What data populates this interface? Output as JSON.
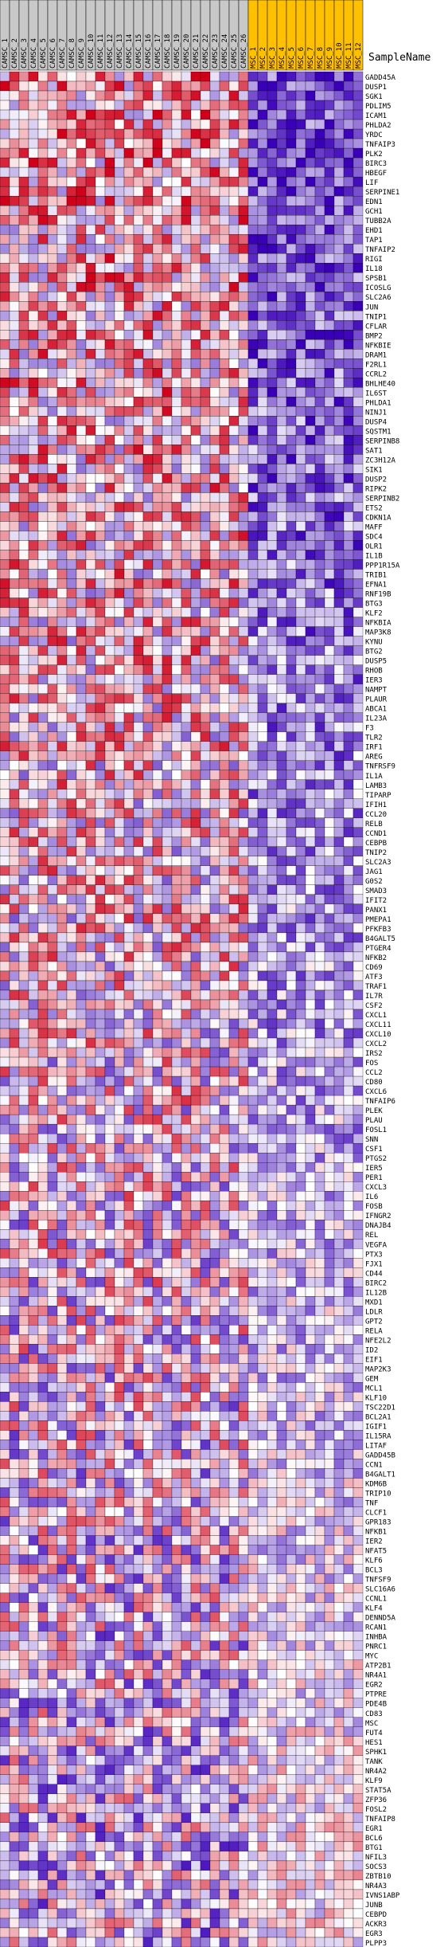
{
  "chart_data": {
    "type": "heatmap",
    "title": "SampleName",
    "columns": [
      "CAMSC_1",
      "CAMSC_2",
      "CAMSC_3",
      "CAMSC_4",
      "CAMSC_5",
      "CAMSC_6",
      "CAMSC_7",
      "CAMSC_8",
      "CAMSC_9",
      "CAMSC_10",
      "CAMSC_11",
      "CAMSC_12",
      "CAMSC_13",
      "CAMSC_14",
      "CAMSC_15",
      "CAMSC_16",
      "CAMSC_17",
      "CAMSC_18",
      "CAMSC_19",
      "CAMSC_20",
      "CAMSC_21",
      "CAMSC_22",
      "CAMSC_23",
      "CAMSC_24",
      "CAMSC_25",
      "CAMSC_26",
      "MSC_1",
      "MSC_2",
      "MSC_3",
      "MSC_4",
      "MSC_5",
      "MSC_6",
      "MSC_7",
      "MSC_8",
      "MSC_9",
      "MSC_10",
      "MSC_11",
      "MSC_12"
    ],
    "column_groups": [
      {
        "name": "CAMSC",
        "count": 26,
        "color": "#c8c8c8"
      },
      {
        "name": "MSC",
        "count": 12,
        "color": "#ffc000"
      }
    ],
    "rows": [
      "GADD45A",
      "DUSP1",
      "SGK1",
      "PDLIM5",
      "ICAM1",
      "PHLDA2",
      "YRDC",
      "TNFAIP3",
      "PLK2",
      "BIRC3",
      "HBEGF",
      "LIF",
      "SERPINE1",
      "EDN1",
      "GCH1",
      "TUBB2A",
      "EHD1",
      "TAP1",
      "TNFAIP2",
      "RIGI",
      "IL18",
      "SPSB1",
      "ICOSLG",
      "SLC2A6",
      "JUN",
      "TNIP1",
      "CFLAR",
      "BMP2",
      "NFKBIE",
      "DRAM1",
      "F2RL1",
      "CCRL2",
      "BHLHE40",
      "IL6ST",
      "PHLDA1",
      "NINJ1",
      "DUSP4",
      "SQSTM1",
      "SERPINB8",
      "SAT1",
      "ZC3H12A",
      "SIK1",
      "DUSP2",
      "RIPK2",
      "SERPINB2",
      "ETS2",
      "CDKN1A",
      "MAFF",
      "SDC4",
      "OLR1",
      "IL1B",
      "PPP1R15A",
      "TRIB1",
      "EFNA1",
      "RNF19B",
      "BTG3",
      "KLF2",
      "NFKBIA",
      "MAP3K8",
      "KYNU",
      "BTG2",
      "DUSP5",
      "RHOB",
      "IER3",
      "NAMPT",
      "PLAUR",
      "ABCA1",
      "IL23A",
      "F3",
      "TLR2",
      "IRF1",
      "AREG",
      "TNFRSF9",
      "IL1A",
      "LAMB3",
      "TIPARP",
      "IFIH1",
      "CCL20",
      "RELB",
      "CCND1",
      "CEBPB",
      "TNIP2",
      "SLC2A3",
      "JAG1",
      "G0S2",
      "SMAD3",
      "IFIT2",
      "PANX1",
      "PMEPA1",
      "PFKFB3",
      "B4GALT5",
      "PTGER4",
      "NFKB2",
      "CD69",
      "ATF3",
      "TRAF1",
      "IL7R",
      "CSF2",
      "CXCL1",
      "CXCL11",
      "CXCL10",
      "CXCL2",
      "IRS2",
      "FOS",
      "CCL2",
      "CD80",
      "CXCL6",
      "TNFAIP6",
      "PLEK",
      "PLAU",
      "FOSL1",
      "SNN",
      "CSF1",
      "PTGS2",
      "IER5",
      "PER1",
      "CXCL3",
      "IL6",
      "FOSB",
      "IFNGR2",
      "DNAJB4",
      "REL",
      "VEGFA",
      "PTX3",
      "FJX1",
      "CD44",
      "BIRC2",
      "IL12B",
      "MXD1",
      "LDLR",
      "GPT2",
      "RELA",
      "NFE2L2",
      "ID2",
      "EIF1",
      "MAP2K3",
      "GEM",
      "MCL1",
      "KLF10",
      "TSC22D1",
      "BCL2A1",
      "IGIF1",
      "IL15RA",
      "LITAF",
      "GADD45B",
      "CCN1",
      "B4GALT1",
      "KDM6B",
      "TRIP10",
      "TNF",
      "CLCF1",
      "GPR183",
      "NFKB1",
      "IER2",
      "NFAT5",
      "KLF6",
      "BCL3",
      "TNFSF9",
      "SLC16A6",
      "CCNL1",
      "KLF4",
      "DENND5A",
      "RCAN1",
      "INHBA",
      "PNRC1",
      "MYC",
      "ATP2B1",
      "NR4A1",
      "EGR2",
      "PTPRE",
      "PDE4B",
      "CD83",
      "MSC",
      "FUT4",
      "HES1",
      "SPHK1",
      "TANK",
      "NR4A2",
      "KLF9",
      "STAT5A",
      "ZFP36",
      "FOSL2",
      "TNFAIP8",
      "EGR1",
      "BCL6",
      "BTG1",
      "NFIL3",
      "SOCS3",
      "ZBTB10",
      "NR4A3",
      "IVNS1ABP",
      "JUNB",
      "CEBPD",
      "ACKR3",
      "EGR3",
      "PLPP3"
    ],
    "color_scale": {
      "low": "#3a00b8",
      "mid": "#ffffff",
      "high": "#d0001a"
    },
    "value_range": [
      -3,
      3
    ],
    "seed": 20241
  }
}
